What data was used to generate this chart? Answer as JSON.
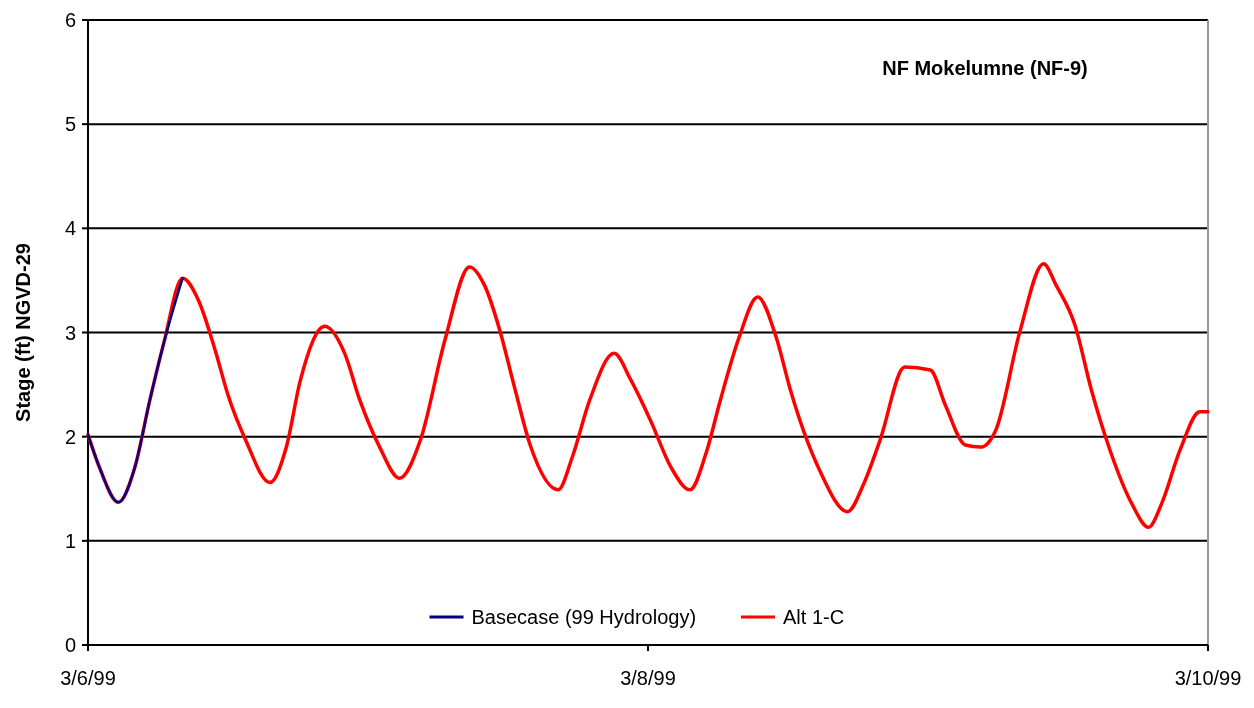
{
  "chart_data": {
    "type": "line",
    "title": "NF Mokelumne (NF-9)",
    "ylabel": "Stage (ft) NGVD-29",
    "xlim": [
      "1999-03-06T00:00",
      "1999-03-10T00:00"
    ],
    "xticks": [
      {
        "value": "1999-03-06T00:00",
        "label": "3/6/99"
      },
      {
        "value": "1999-03-08T00:00",
        "label": "3/8/99"
      },
      {
        "value": "1999-03-10T00:00",
        "label": "3/10/99"
      }
    ],
    "ylim": [
      0,
      6
    ],
    "yticks": [
      0,
      1,
      2,
      3,
      4,
      5,
      6
    ],
    "grid": "y",
    "legend": "bottom",
    "line_style": "solid",
    "marker": "none",
    "x": [
      "1999-03-06T00:00",
      "1999-03-06T01:00",
      "1999-03-06T02:36",
      "1999-03-06T04:00",
      "1999-03-06T05:18",
      "1999-03-06T06:30",
      "1999-03-06T08:06",
      "1999-03-06T09:30",
      "1999-03-06T10:54",
      "1999-03-06T12:00",
      "1999-03-06T13:30",
      "1999-03-06T15:36",
      "1999-03-06T17:00",
      "1999-03-06T18:12",
      "1999-03-06T20:18",
      "1999-03-06T22:00",
      "1999-03-06T23:18",
      "1999-03-07T01:00",
      "1999-03-07T02:42",
      "1999-03-07T04:30",
      "1999-03-07T06:36",
      "1999-03-07T08:42",
      "1999-03-07T10:00",
      "1999-03-07T11:18",
      "1999-03-07T12:30",
      "1999-03-07T13:54",
      "1999-03-07T16:18",
      "1999-03-07T17:30",
      "1999-03-07T19:00",
      "1999-03-07T21:06",
      "1999-03-07T22:30",
      "1999-03-08T00:12",
      "1999-03-08T02:00",
      "1999-03-08T03:36",
      "1999-03-08T05:00",
      "1999-03-08T06:12",
      "1999-03-08T07:48",
      "1999-03-08T09:24",
      "1999-03-08T11:00",
      "1999-03-08T12:12",
      "1999-03-08T14:42",
      "1999-03-08T17:06",
      "1999-03-08T18:30",
      "1999-03-08T19:54",
      "1999-03-08T22:00",
      "1999-03-09T00:12",
      "1999-03-09T01:30",
      "1999-03-09T03:12",
      "1999-03-09T04:30",
      "1999-03-09T05:48",
      "1999-03-09T07:54",
      "1999-03-09T09:54",
      "1999-03-09T11:00",
      "1999-03-09T12:36",
      "1999-03-09T14:00",
      "1999-03-09T15:36",
      "1999-03-09T17:30",
      "1999-03-09T18:54",
      "1999-03-09T20:00",
      "1999-03-09T21:36",
      "1999-03-09T23:18",
      "1999-03-10T00:00"
    ],
    "series": [
      {
        "name": "Alt 1-C",
        "color": "#ff0000",
        "values": [
          2.02,
          1.7,
          1.37,
          1.7,
          2.35,
          2.9,
          3.52,
          3.3,
          2.83,
          2.4,
          1.97,
          1.56,
          1.9,
          2.54,
          3.06,
          2.8,
          2.35,
          1.9,
          1.6,
          1.97,
          2.93,
          3.63,
          3.45,
          3.02,
          2.5,
          1.92,
          1.49,
          1.8,
          2.35,
          2.8,
          2.55,
          2.16,
          1.7,
          1.49,
          1.85,
          2.35,
          2.95,
          3.34,
          2.95,
          2.45,
          1.68,
          1.28,
          1.55,
          1.97,
          2.67,
          2.64,
          2.3,
          1.92,
          1.9,
          2.06,
          3.02,
          3.66,
          3.45,
          3.07,
          2.45,
          1.87,
          1.35,
          1.13,
          1.35,
          1.87,
          2.24,
          2.24
        ]
      },
      {
        "name": "Basecase (99 Hydrology)",
        "color": "#000080",
        "x": [
          "1999-03-06T00:00",
          "1999-03-06T01:00",
          "1999-03-06T02:36",
          "1999-03-06T04:00",
          "1999-03-06T05:18",
          "1999-03-06T06:30",
          "1999-03-06T08:06"
        ],
        "values": [
          2.02,
          1.7,
          1.37,
          1.7,
          2.35,
          2.9,
          3.52
        ]
      }
    ]
  }
}
